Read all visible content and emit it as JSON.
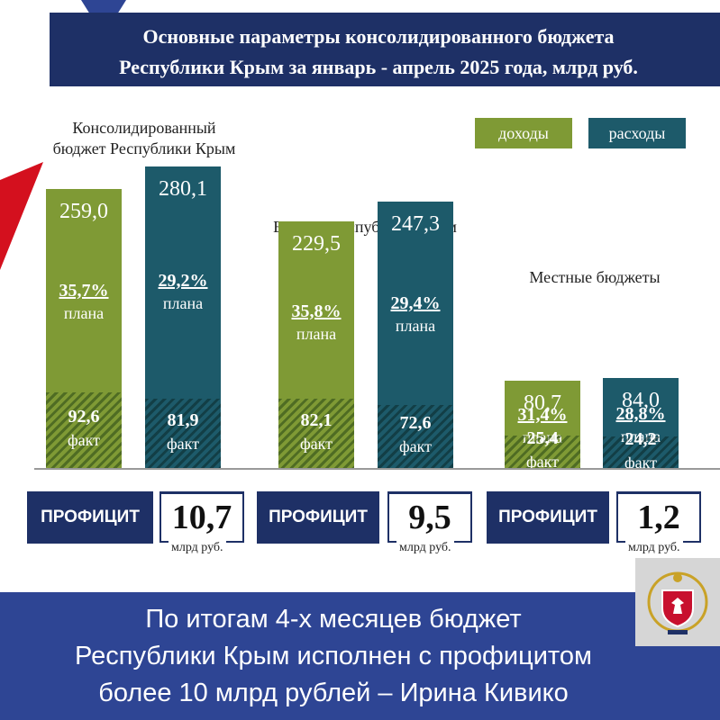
{
  "header": {
    "title_line1": "Основные  параметры  консолидированного  бюджета",
    "title_line2": "Республики Крым за январь - апрель 2025 года, млрд руб."
  },
  "legend": {
    "income": "доходы",
    "expense": "расходы"
  },
  "colors": {
    "income": "#7f9a35",
    "expense": "#1d5a6a",
    "navy": "#1e3066",
    "footer": "#2e4594",
    "accent_red": "#d4101e"
  },
  "chart_data": {
    "type": "bar",
    "stacked_overlay": true,
    "series": [
      {
        "name": "доходы",
        "plan_values": [
          259.0,
          229.5,
          80.7
        ],
        "fact_values": [
          92.6,
          82.1,
          25.4
        ],
        "pct_of_plan": [
          "35,7%",
          "35,8%",
          "31,4%"
        ]
      },
      {
        "name": "расходы",
        "plan_values": [
          280.1,
          247.3,
          84.0
        ],
        "fact_values": [
          81.9,
          72.6,
          24.2
        ],
        "pct_of_plan": [
          "29,2%",
          "29,4%",
          "28,8%"
        ]
      }
    ],
    "legend_placement": "top-right"
  },
  "groups": [
    {
      "title_line1": "Консолидированный",
      "title_line2": "бюджет Республики Крым",
      "income": {
        "total": "259,0",
        "pct": "35,7%",
        "plan": "плана",
        "fact": "92,6",
        "fact_label": "факт"
      },
      "expense": {
        "total": "280,1",
        "pct": "29,2%",
        "plan": "плана",
        "fact": "81,9",
        "fact_label": "факт"
      },
      "surplus": {
        "label": "ПРОФИЦИТ",
        "value": "10,7",
        "unit": "млрд руб."
      }
    },
    {
      "title_line1": "Бюджет Республики Крым",
      "title_line2": "",
      "income": {
        "total": "229,5",
        "pct": "35,8%",
        "plan": "плана",
        "fact": "82,1",
        "fact_label": "факт"
      },
      "expense": {
        "total": "247,3",
        "pct": "29,4%",
        "plan": "плана",
        "fact": "72,6",
        "fact_label": "факт"
      },
      "surplus": {
        "label": "ПРОФИЦИТ",
        "value": "9,5",
        "unit": "млрд руб."
      }
    },
    {
      "title_line1": "Местные бюджеты",
      "title_line2": "",
      "income": {
        "total": "80,7",
        "pct": "31,4%",
        "plan": "плана",
        "fact": "25,4",
        "fact_label": "факт"
      },
      "expense": {
        "total": "84,0",
        "pct": "28,8%",
        "plan": "плана",
        "fact": "24,2",
        "fact_label": "факт"
      },
      "surplus": {
        "label": "ПРОФИЦИТ",
        "value": "1,2",
        "unit": "млрд руб."
      }
    }
  ],
  "footer": {
    "line1": "По итогам 4-х месяцев бюджет",
    "line2": "Республики Крым исполнен с профицитом",
    "line3": "более 10 млрд рублей – Ирина Кивико"
  }
}
